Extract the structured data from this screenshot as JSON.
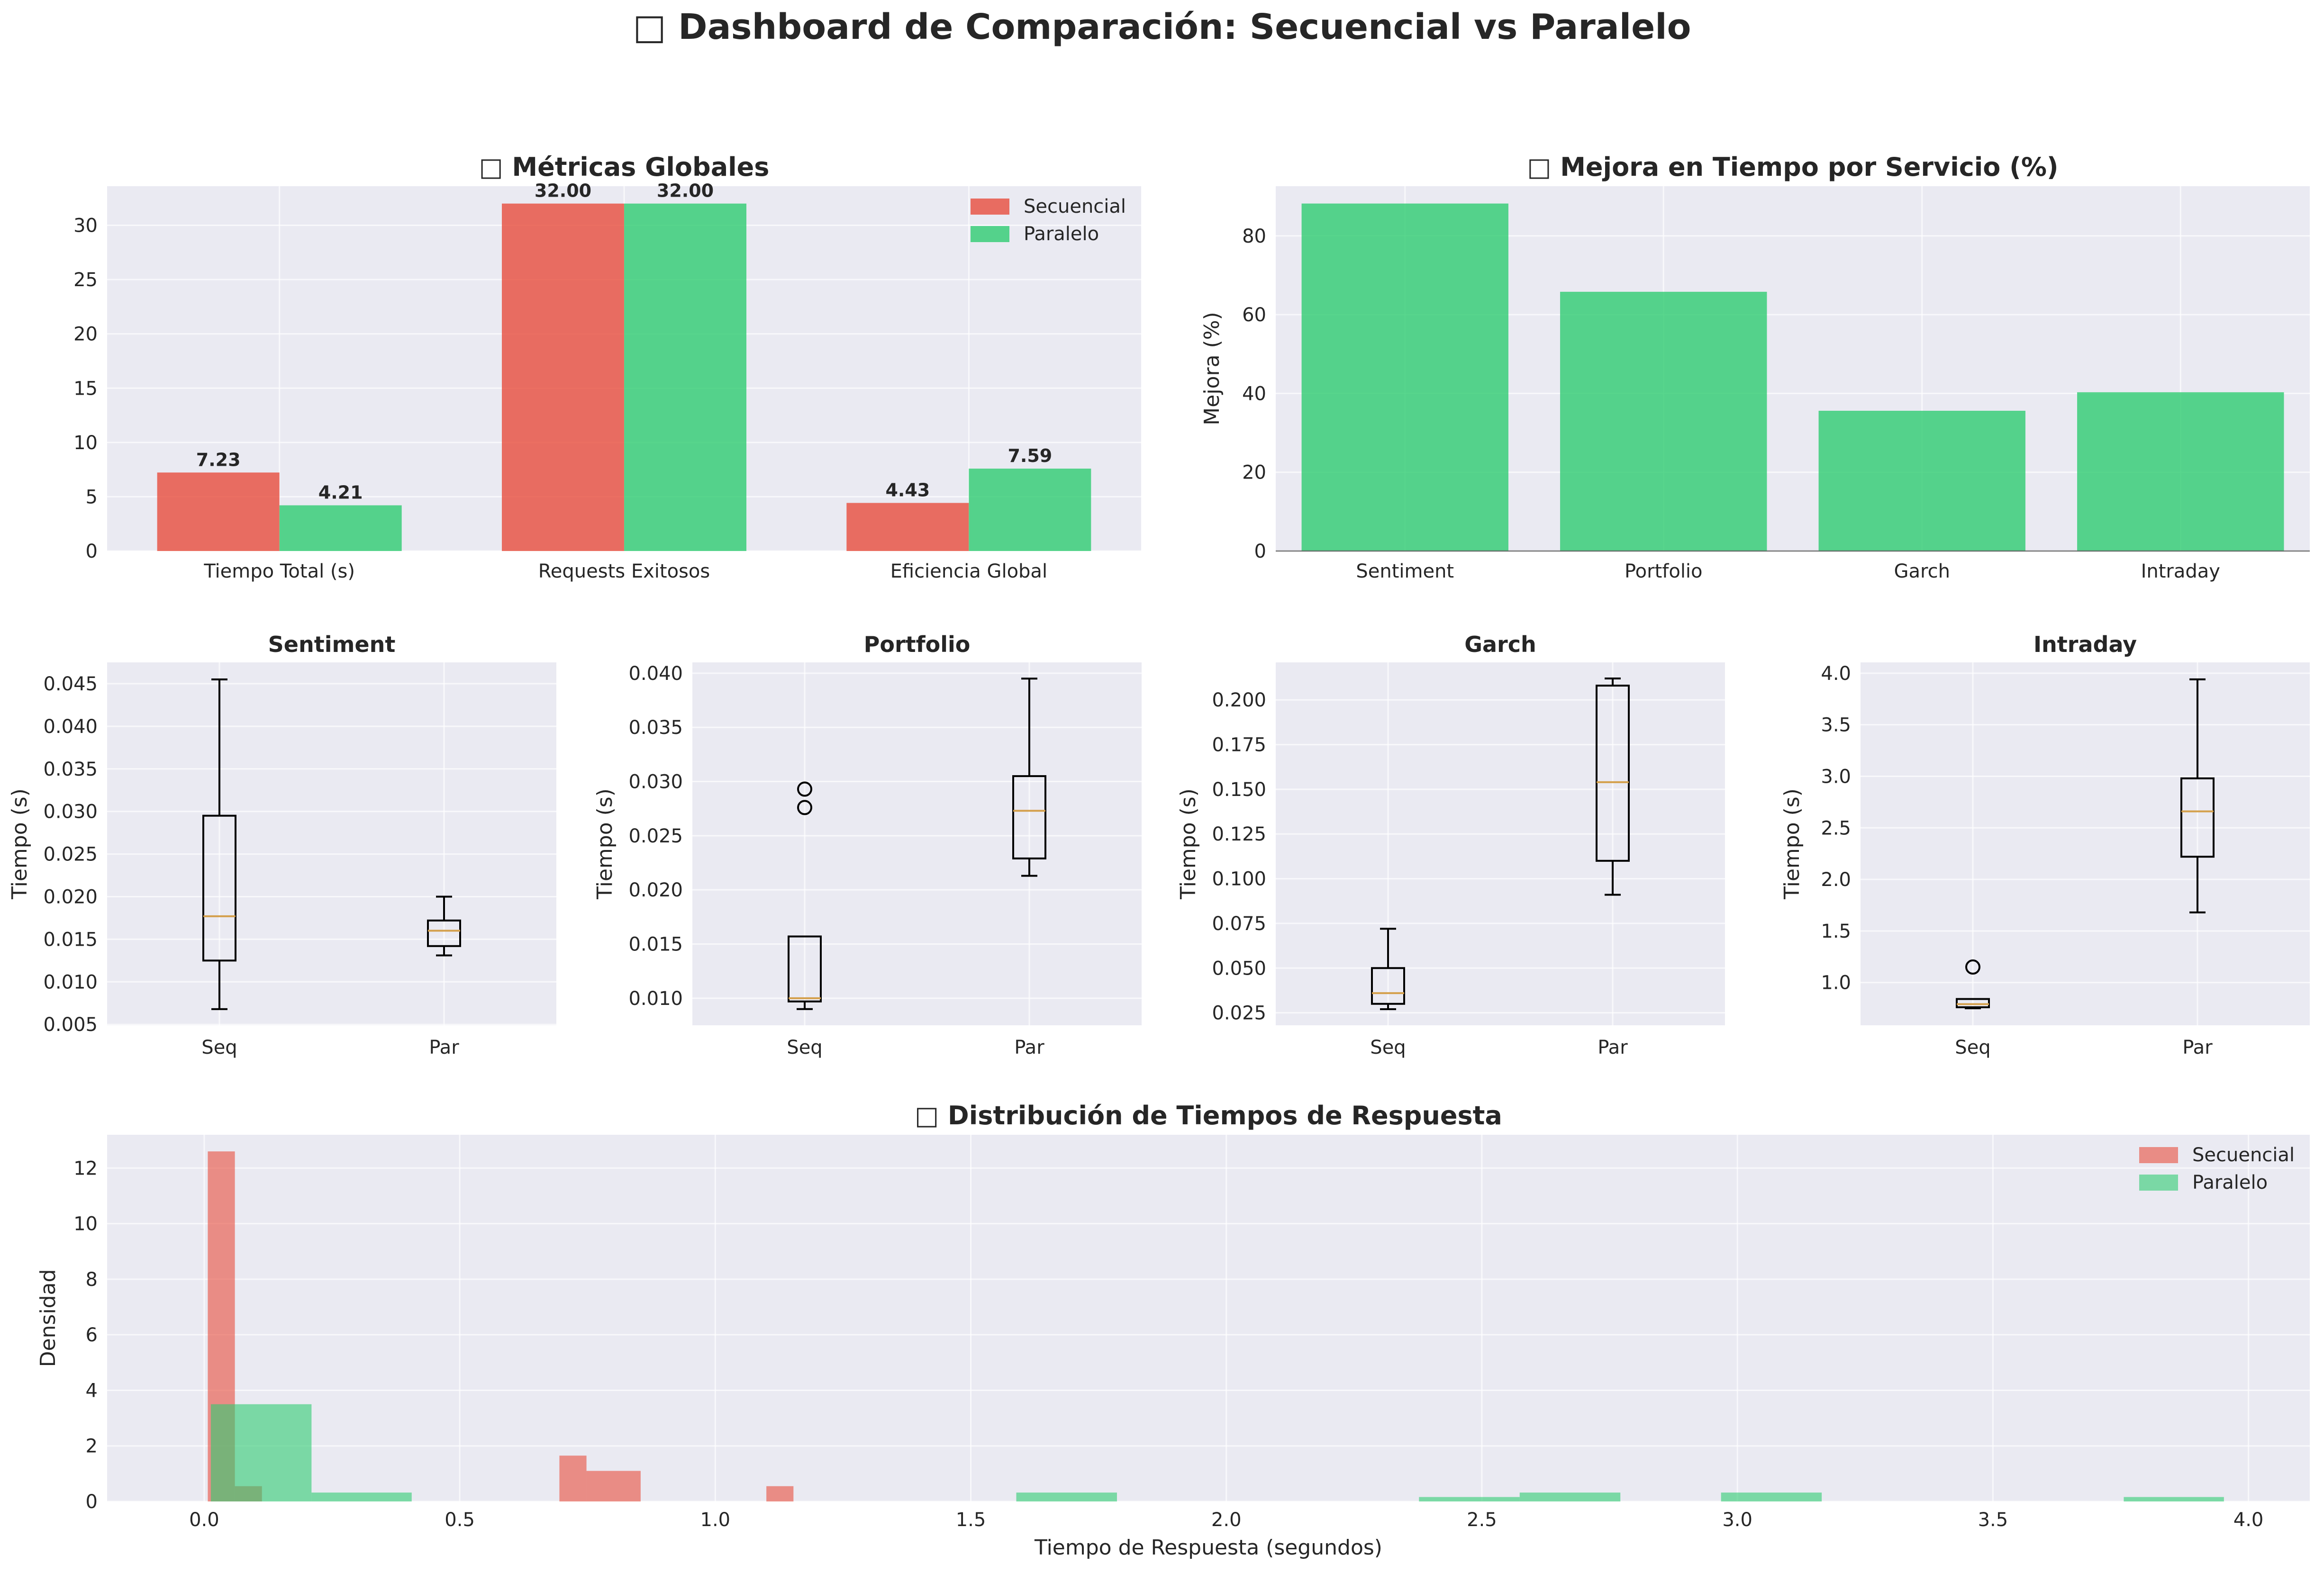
{
  "page_title": "□ Dashboard de Comparación: Secuencial vs Paralelo",
  "colors": {
    "secuencial": "#e74c3c",
    "paralelo": "#2ecc71",
    "background": "#eaeaf2",
    "grid": "#ffffff",
    "median": "#d4a04c"
  },
  "chart_data": [
    {
      "id": "metricas",
      "type": "bar",
      "title": "□ Métricas Globales",
      "categories": [
        "Tiempo Total (s)",
        "Requests Exitosos",
        "Eficiencia Global"
      ],
      "series": [
        {
          "name": "Secuencial",
          "values": [
            7.23,
            32.0,
            4.43
          ],
          "labels": [
            "7.23",
            "32.00",
            "4.43"
          ]
        },
        {
          "name": "Paralelo",
          "values": [
            4.21,
            32.0,
            7.59
          ],
          "labels": [
            "4.21",
            "32.00",
            "7.59"
          ]
        }
      ],
      "ylim": [
        0,
        33.6
      ],
      "yticks": [
        0,
        5,
        10,
        15,
        20,
        25,
        30
      ],
      "legend": "top-right",
      "grid": true
    },
    {
      "id": "mejora",
      "type": "bar",
      "title": "□ Mejora en Tiempo por Servicio (%)",
      "ylabel": "Mejora (%)",
      "categories": [
        "Sentiment",
        "Portfolio",
        "Garch",
        "Intraday"
      ],
      "values": [
        88.2,
        65.8,
        35.6,
        40.3
      ],
      "ylim": [
        0,
        92.6
      ],
      "yticks": [
        0,
        20,
        40,
        60,
        80
      ],
      "grid": true
    },
    {
      "id": "box-sentiment",
      "type": "box",
      "title": "Sentiment",
      "ylabel": "Tiempo (s)",
      "categories": [
        "Seq",
        "Par"
      ],
      "boxes": [
        {
          "whislo": 0.0068,
          "q1": 0.0125,
          "med": 0.0177,
          "q3": 0.0295,
          "whishi": 0.0455,
          "fliers": []
        },
        {
          "whislo": 0.0131,
          "q1": 0.0142,
          "med": 0.016,
          "q3": 0.0172,
          "whishi": 0.02,
          "fliers": []
        }
      ],
      "ylim": [
        0.0049,
        0.0475
      ],
      "yticks": [
        "0.005",
        "0.010",
        "0.015",
        "0.020",
        "0.025",
        "0.030",
        "0.035",
        "0.040",
        "0.045"
      ],
      "grid": true
    },
    {
      "id": "box-portfolio",
      "type": "box",
      "title": "Portfolio",
      "ylabel": "Tiempo (s)",
      "categories": [
        "Seq",
        "Par"
      ],
      "boxes": [
        {
          "whislo": 0.009,
          "q1": 0.0097,
          "med": 0.01,
          "q3": 0.0157,
          "whishi": 0.0157,
          "fliers": [
            0.0276,
            0.0293
          ]
        },
        {
          "whislo": 0.0213,
          "q1": 0.0229,
          "med": 0.0273,
          "q3": 0.0305,
          "whishi": 0.0395,
          "fliers": []
        }
      ],
      "ylim": [
        0.0075,
        0.041
      ],
      "yticks": [
        "0.010",
        "0.015",
        "0.020",
        "0.025",
        "0.030",
        "0.035",
        "0.040"
      ],
      "grid": true
    },
    {
      "id": "box-garch",
      "type": "box",
      "title": "Garch",
      "ylabel": "Tiempo (s)",
      "categories": [
        "Seq",
        "Par"
      ],
      "boxes": [
        {
          "whislo": 0.027,
          "q1": 0.03,
          "med": 0.036,
          "q3": 0.05,
          "whishi": 0.072,
          "fliers": []
        },
        {
          "whislo": 0.091,
          "q1": 0.11,
          "med": 0.154,
          "q3": 0.208,
          "whishi": 0.212,
          "fliers": []
        }
      ],
      "ylim": [
        0.018,
        0.221
      ],
      "yticks": [
        "0.025",
        "0.050",
        "0.075",
        "0.100",
        "0.125",
        "0.150",
        "0.175",
        "0.200"
      ],
      "grid": true
    },
    {
      "id": "box-intraday",
      "type": "box",
      "title": "Intraday",
      "ylabel": "Tiempo (s)",
      "categories": [
        "Seq",
        "Par"
      ],
      "boxes": [
        {
          "whislo": 0.75,
          "q1": 0.76,
          "med": 0.79,
          "q3": 0.84,
          "whishi": 0.84,
          "fliers": [
            1.15
          ]
        },
        {
          "whislo": 1.68,
          "q1": 2.22,
          "med": 2.66,
          "q3": 2.98,
          "whishi": 3.94,
          "fliers": []
        }
      ],
      "ylim": [
        0.585,
        4.105
      ],
      "yticks": [
        "1.0",
        "1.5",
        "2.0",
        "2.5",
        "3.0",
        "3.5",
        "4.0"
      ],
      "grid": true
    },
    {
      "id": "distribucion",
      "type": "histogram",
      "title": "□ Distribución de Tiempos de Respuesta",
      "xlabel": "Tiempo de Respuesta (segundos)",
      "ylabel": "Densidad",
      "xlim": [
        -0.19,
        4.12
      ],
      "ylim": [
        0,
        13.2
      ],
      "xticks": [
        "0.0",
        "0.5",
        "1.0",
        "1.5",
        "2.0",
        "2.5",
        "3.0",
        "3.5",
        "4.0"
      ],
      "yticks": [
        0,
        2,
        4,
        6,
        8,
        10,
        12
      ],
      "legend": "top-right",
      "series": [
        {
          "name": "Secuencial",
          "bins": [
            {
              "x0": 0.007,
              "x1": 0.06,
              "density": 12.6
            },
            {
              "x0": 0.06,
              "x1": 0.113,
              "density": 0.55
            },
            {
              "x0": 0.695,
              "x1": 0.748,
              "density": 1.65
            },
            {
              "x0": 0.748,
              "x1": 0.854,
              "density": 1.1
            },
            {
              "x0": 1.1,
              "x1": 1.153,
              "density": 0.55
            }
          ]
        },
        {
          "name": "Paralelo",
          "bins": [
            {
              "x0": 0.013,
              "x1": 0.21,
              "density": 3.5
            },
            {
              "x0": 0.21,
              "x1": 0.406,
              "density": 0.32
            },
            {
              "x0": 1.589,
              "x1": 1.786,
              "density": 0.32
            },
            {
              "x0": 2.377,
              "x1": 2.574,
              "density": 0.16
            },
            {
              "x0": 2.574,
              "x1": 2.771,
              "density": 0.32
            },
            {
              "x0": 2.968,
              "x1": 3.165,
              "density": 0.32
            },
            {
              "x0": 3.756,
              "x1": 3.952,
              "density": 0.16
            }
          ]
        }
      ],
      "grid": true
    }
  ]
}
